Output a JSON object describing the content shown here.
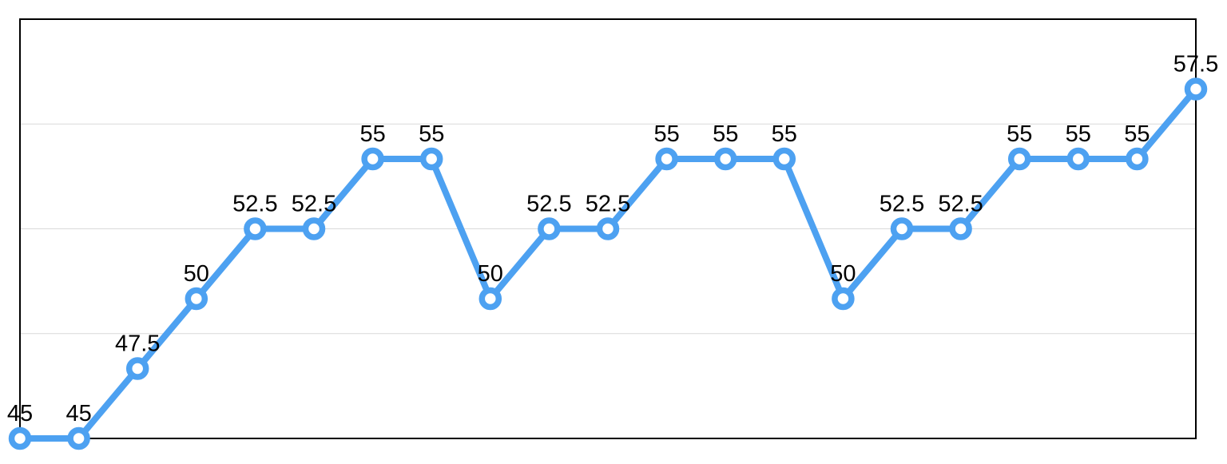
{
  "chart_data": {
    "type": "line",
    "values": [
      45,
      45,
      47.5,
      50,
      52.5,
      52.5,
      55,
      55,
      50,
      52.5,
      52.5,
      55,
      55,
      55,
      50,
      52.5,
      52.5,
      55,
      55,
      55,
      57.5
    ],
    "point_labels": [
      "45",
      "45",
      "47.5",
      "50",
      "52.5",
      "52.5",
      "55",
      "55",
      "50",
      "52.5",
      "52.5",
      "55",
      "55",
      "55",
      "50",
      "52.5",
      "52.5",
      "55",
      "55",
      "55",
      "57.5"
    ],
    "ylim": [
      45,
      60
    ],
    "gridline_values": [
      48.75,
      52.5,
      56.25
    ],
    "grid": "on",
    "legend_position": "none",
    "marker": "circle-open",
    "colors": {
      "line": "#4da1f1",
      "marker_fill": "#ffffff",
      "marker_stroke": "#4da1f1",
      "grid": "#d9d9d9",
      "frame": "#000000",
      "label_text": "#000000",
      "background": "#ffffff"
    }
  }
}
